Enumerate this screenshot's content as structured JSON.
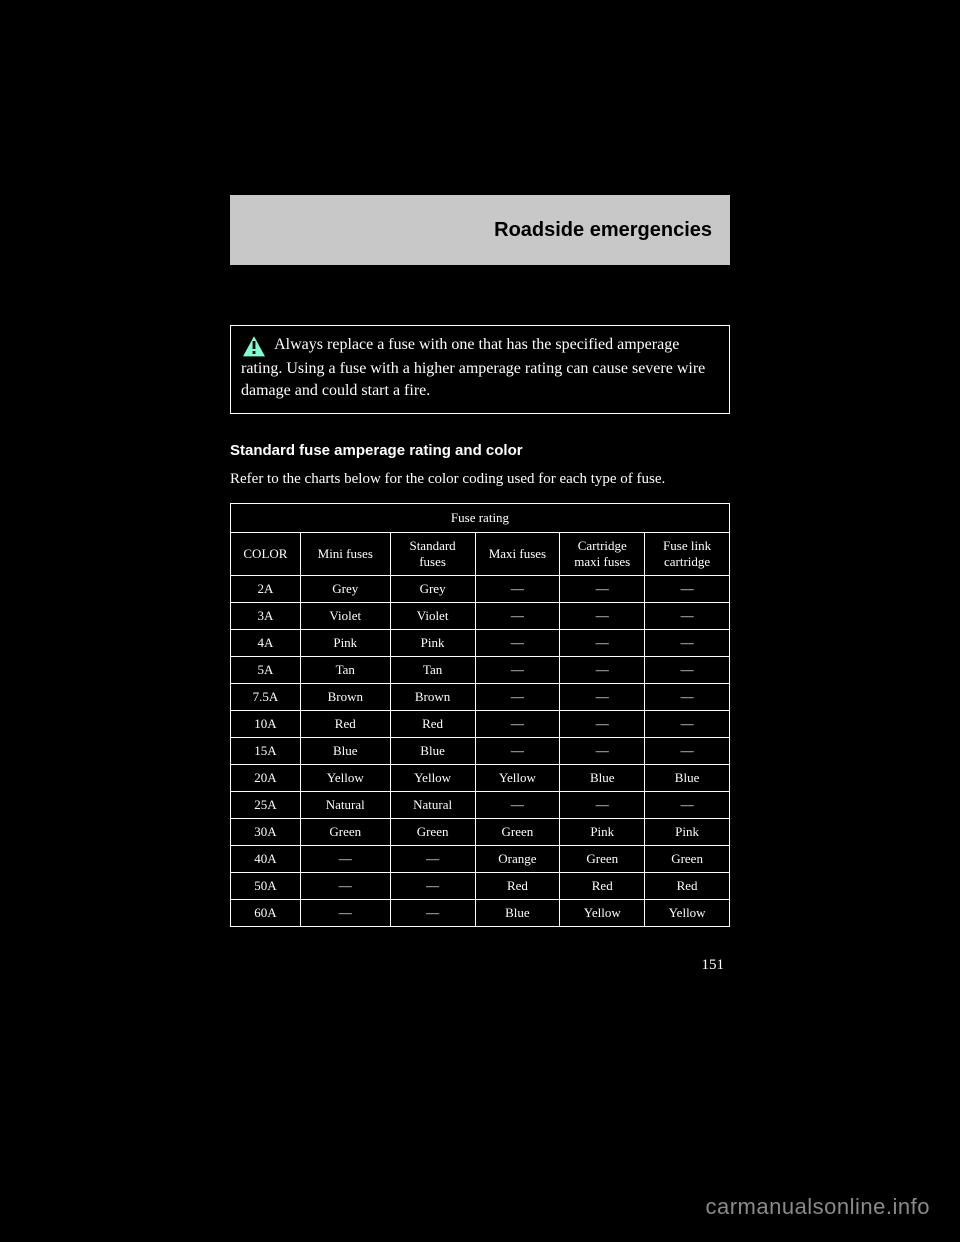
{
  "header": {
    "title": "Roadside emergencies"
  },
  "warning": {
    "text": "Always replace a fuse with one that has the specified amperage rating. Using a fuse with a higher amperage rating can cause severe wire damage and could start a fire.",
    "icon_bg": "#7fffd4",
    "icon_border": "#000000",
    "icon_glyph_color": "#000000"
  },
  "section": {
    "heading": "Standard fuse amperage rating and color",
    "sub": "Refer to the charts below for the color coding used for each type of fuse."
  },
  "table": {
    "group_header": "Fuse rating",
    "columns": [
      "COLOR",
      "Mini fuses",
      "Standard fuses",
      "Maxi fuses",
      "Cartridge maxi fuses",
      "Fuse link cartridge"
    ],
    "rows": [
      [
        "2A",
        "Grey",
        "Grey",
        "—",
        "—",
        "—"
      ],
      [
        "3A",
        "Violet",
        "Violet",
        "—",
        "—",
        "—"
      ],
      [
        "4A",
        "Pink",
        "Pink",
        "—",
        "—",
        "—"
      ],
      [
        "5A",
        "Tan",
        "Tan",
        "—",
        "—",
        "—"
      ],
      [
        "7.5A",
        "Brown",
        "Brown",
        "—",
        "—",
        "—"
      ],
      [
        "10A",
        "Red",
        "Red",
        "—",
        "—",
        "—"
      ],
      [
        "15A",
        "Blue",
        "Blue",
        "—",
        "—",
        "—"
      ],
      [
        "20A",
        "Yellow",
        "Yellow",
        "Yellow",
        "Blue",
        "Blue"
      ],
      [
        "25A",
        "Natural",
        "Natural",
        "—",
        "—",
        "—"
      ],
      [
        "30A",
        "Green",
        "Green",
        "Green",
        "Pink",
        "Pink"
      ],
      [
        "40A",
        "—",
        "—",
        "Orange",
        "Green",
        "Green"
      ],
      [
        "50A",
        "—",
        "—",
        "Red",
        "Red",
        "Red"
      ],
      [
        "60A",
        "—",
        "—",
        "Blue",
        "Yellow",
        "Yellow"
      ]
    ],
    "border_color": "#ffffff",
    "text_color": "#ffffff"
  },
  "page_number": "151",
  "watermark": "carmanualsonline.info",
  "colors": {
    "page_bg": "#000000",
    "header_bg": "#c8c8c8",
    "header_text": "#000000",
    "body_text": "#ffffff",
    "watermark_text": "#8a8a8a"
  }
}
